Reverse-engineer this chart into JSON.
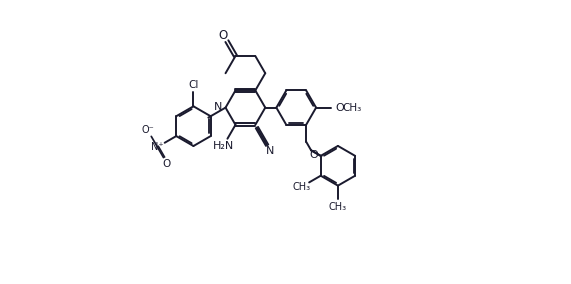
{
  "bg_color": "#ffffff",
  "bond_color": "#1a1a2e",
  "bond_width": 1.4,
  "dbo": 0.04,
  "figsize": [
    5.71,
    2.84
  ],
  "dpi": 100,
  "BL": 0.52,
  "xlim": [
    0.0,
    10.5
  ],
  "ylim": [
    -2.2,
    5.2
  ]
}
